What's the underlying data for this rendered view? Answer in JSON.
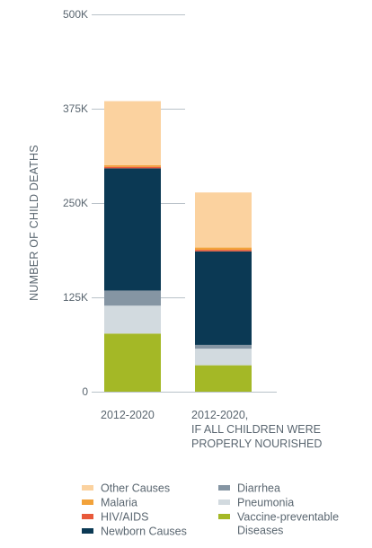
{
  "chart_data": {
    "type": "bar",
    "stacked": true,
    "ylabel": "NUMBER OF CHILD DEATHS",
    "ylim": [
      0,
      500000
    ],
    "yticks": [
      {
        "value": 0,
        "label": "0"
      },
      {
        "value": 125000,
        "label": "125K"
      },
      {
        "value": 250000,
        "label": "250K"
      },
      {
        "value": 375000,
        "label": "375K"
      },
      {
        "value": 500000,
        "label": "500K"
      }
    ],
    "categories": [
      [
        "2012-2020"
      ],
      [
        "2012-2020,",
        "IF ALL CHILDREN WERE",
        "PROPERLY NOURISHED"
      ]
    ],
    "series": [
      {
        "name": "Vaccine-preventable Diseases",
        "legend_lines": [
          "Vaccine-preventable",
          "Diseases"
        ],
        "color": "#a4b826",
        "values": [
          77000,
          35000
        ]
      },
      {
        "name": "Pneumonia",
        "legend_lines": [
          "Pneumonia"
        ],
        "color": "#d2dadf",
        "values": [
          37000,
          22000
        ]
      },
      {
        "name": "Diarrhea",
        "legend_lines": [
          "Diarrhea"
        ],
        "color": "#8595a3",
        "values": [
          20000,
          5000
        ]
      },
      {
        "name": "Newborn Causes",
        "legend_lines": [
          "Newborn Causes"
        ],
        "color": "#0b3954",
        "values": [
          162000,
          124000
        ]
      },
      {
        "name": "HIV/AIDS",
        "legend_lines": [
          "HIV/AIDS"
        ],
        "color": "#e8593a",
        "values": [
          2000,
          2000
        ]
      },
      {
        "name": "Malaria",
        "legend_lines": [
          "Malaria"
        ],
        "color": "#f2a23a",
        "values": [
          2000,
          3000
        ]
      },
      {
        "name": "Other Causes",
        "legend_lines": [
          "Other Causes"
        ],
        "color": "#fbd29f",
        "values": [
          85000,
          73000
        ]
      }
    ],
    "legend_order": [
      "Other Causes",
      "Malaria",
      "HIV/AIDS",
      "Newborn Causes",
      "Diarrhea",
      "Pneumonia",
      "Vaccine-preventable Diseases"
    ],
    "grid": false
  }
}
